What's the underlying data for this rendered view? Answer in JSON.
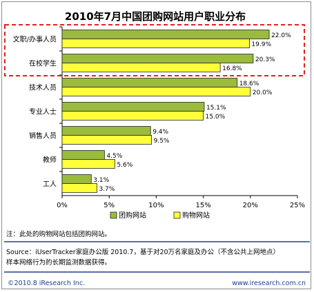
{
  "colors": {
    "series1": "#9bbb3c",
    "series2": "#ffff3a",
    "bar_stroke": "#222222",
    "highlight": "#e02020",
    "rule": "#1f3f8f",
    "footer_text": "#1f3f8f"
  },
  "note": "注：此处的购物网站包括团购网站。",
  "source": {
    "line1": "Source：iUserTracker家庭办公版 2010.7，基于对20万名家庭及办公（不含公共上网地点）",
    "line2": "样本网络行为的长期监测数据获得。"
  },
  "footer": {
    "copyright": "©2010.8 iResearch Inc.",
    "website": "www.iresearch.com.cn"
  },
  "chart_data": {
    "type": "bar",
    "orientation": "horizontal",
    "title": "2010年7月中国团购网站用户职业分布",
    "categories": [
      "文职/办事人员",
      "在校学生",
      "技术人员",
      "专业人士",
      "销售人员",
      "教师",
      "工人"
    ],
    "series": [
      {
        "name": "团购网站",
        "values": [
          22.0,
          20.3,
          18.6,
          15.1,
          9.4,
          4.5,
          3.1
        ],
        "labels": [
          "22.0%",
          "20.3%",
          "18.6%",
          "15.1%",
          "9.4%",
          "4.5%",
          "3.1%"
        ]
      },
      {
        "name": "购物网站",
        "values": [
          19.9,
          16.8,
          20.0,
          15.0,
          9.5,
          5.6,
          3.7
        ],
        "labels": [
          "19.9%",
          "16.8%",
          "20.0%",
          "15.0%",
          "9.5%",
          "5.6%",
          "3.7%"
        ]
      }
    ],
    "xlim": [
      0,
      25
    ],
    "xticks": [
      0,
      5,
      10,
      15,
      20,
      25
    ],
    "xtick_labels": [
      "0%",
      "5%",
      "10%",
      "15%",
      "20%",
      "25%"
    ],
    "grid": false,
    "legend": "bottom",
    "highlighted_categories": [
      "文职/办事人员",
      "在校学生"
    ]
  }
}
